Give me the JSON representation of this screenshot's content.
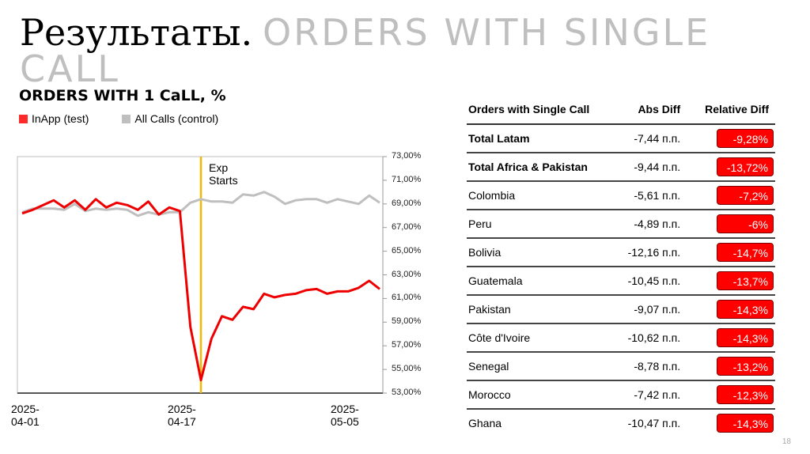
{
  "slide": {
    "title_ru": "Результаты.",
    "title_en": "ORDERS WITH SINGLE CALL",
    "page_number": "18"
  },
  "chart": {
    "subtitle": "ORDERS WITH 1 CaLL, %",
    "legend": [
      {
        "label": "InApp (test)",
        "color": "#ff2b2b"
      },
      {
        "label": "All Calls (control)",
        "color": "#bfbfbf"
      }
    ],
    "annotation": "Exp Starts",
    "y_ticks": [
      "73,00%",
      "71,00%",
      "69,00%",
      "67,00%",
      "65,00%",
      "63,00%",
      "61,00%",
      "59,00%",
      "57,00%",
      "55,00%",
      "53,00%"
    ],
    "x_ticks": [
      "2025-04-01",
      "2025-04-17",
      "2025-05-05"
    ]
  },
  "chart_data": {
    "type": "line",
    "title": "ORDERS WITH 1 CaLL, %",
    "xlabel": "",
    "ylabel": "",
    "ylim": [
      53,
      73
    ],
    "y_axis_position": "right",
    "grid": false,
    "legend_position": "top-left",
    "x_tick_labels": [
      "2025-04-01",
      "2025-04-17",
      "2025-05-05"
    ],
    "x": [
      "2025-04-01",
      "2025-04-02",
      "2025-04-03",
      "2025-04-04",
      "2025-04-05",
      "2025-04-06",
      "2025-04-07",
      "2025-04-08",
      "2025-04-09",
      "2025-04-10",
      "2025-04-11",
      "2025-04-12",
      "2025-04-13",
      "2025-04-14",
      "2025-04-15",
      "2025-04-16",
      "2025-04-17",
      "2025-04-18",
      "2025-04-19",
      "2025-04-20",
      "2025-04-21",
      "2025-04-22",
      "2025-04-23",
      "2025-04-24",
      "2025-04-25",
      "2025-04-26",
      "2025-04-27",
      "2025-04-28",
      "2025-04-29",
      "2025-04-30",
      "2025-05-01",
      "2025-05-02",
      "2025-05-03",
      "2025-05-04",
      "2025-05-05"
    ],
    "series": [
      {
        "name": "InApp (test)",
        "color": "#ee0000",
        "values": [
          68.2,
          68.5,
          68.9,
          69.3,
          68.7,
          69.3,
          68.5,
          69.4,
          68.7,
          69.1,
          68.9,
          68.5,
          69.2,
          68.1,
          68.7,
          68.4,
          58.6,
          54.1,
          57.6,
          59.5,
          59.2,
          60.3,
          60.1,
          61.4,
          61.1,
          61.3,
          61.4,
          61.7,
          61.8,
          61.4,
          61.6,
          61.6,
          61.9,
          62.5,
          61.8
        ]
      },
      {
        "name": "All Calls (control)",
        "color": "#bfbfbf",
        "values": [
          68.3,
          68.6,
          68.6,
          68.6,
          68.5,
          69.0,
          68.4,
          68.6,
          68.5,
          68.6,
          68.5,
          68.0,
          68.3,
          68.1,
          68.3,
          68.3,
          69.1,
          69.4,
          69.2,
          69.2,
          69.1,
          69.8,
          69.7,
          70.0,
          69.6,
          69.0,
          69.3,
          69.4,
          69.4,
          69.1,
          69.4,
          69.2,
          69.0,
          69.7,
          69.1
        ]
      }
    ],
    "annotations": [
      {
        "type": "vline",
        "x": "2025-04-18",
        "label": "Exp Starts",
        "color": "#f5b800"
      }
    ]
  },
  "table": {
    "headers": [
      "Orders with Single Call",
      "Abs Diff",
      "Relative Diff"
    ],
    "rows": [
      {
        "name": "Total Latam",
        "abs": "-7,44 п.п.",
        "rel": "-9,28%",
        "bold": true
      },
      {
        "name": "Total Africa & Pakistan",
        "abs": "-9,44 п.п.",
        "rel": "-13,72%",
        "bold": true
      },
      {
        "name": "Colombia",
        "abs": "-5,61 п.п.",
        "rel": "-7,2%",
        "bold": false
      },
      {
        "name": "Peru",
        "abs": "-4,89 п.п.",
        "rel": "-6%",
        "bold": false
      },
      {
        "name": "Bolivia",
        "abs": "-12,16 п.п.",
        "rel": "-14,7%",
        "bold": false
      },
      {
        "name": "Guatemala",
        "abs": "-10,45 п.п.",
        "rel": "-13,7%",
        "bold": false
      },
      {
        "name": "Pakistan",
        "abs": "-9,07 п.п.",
        "rel": "-14,3%",
        "bold": false
      },
      {
        "name": "Côte d'Ivoire",
        "abs": "-10,62 п.п.",
        "rel": "-14,3%",
        "bold": false
      },
      {
        "name": "Senegal",
        "abs": "-8,78 п.п.",
        "rel": "-13,2%",
        "bold": false
      },
      {
        "name": "Morocco",
        "abs": "-7,42 п.п.",
        "rel": "-12,3%",
        "bold": false
      },
      {
        "name": "Ghana",
        "abs": "-10,47 п.п.",
        "rel": "-14,3%",
        "bold": false
      }
    ]
  }
}
